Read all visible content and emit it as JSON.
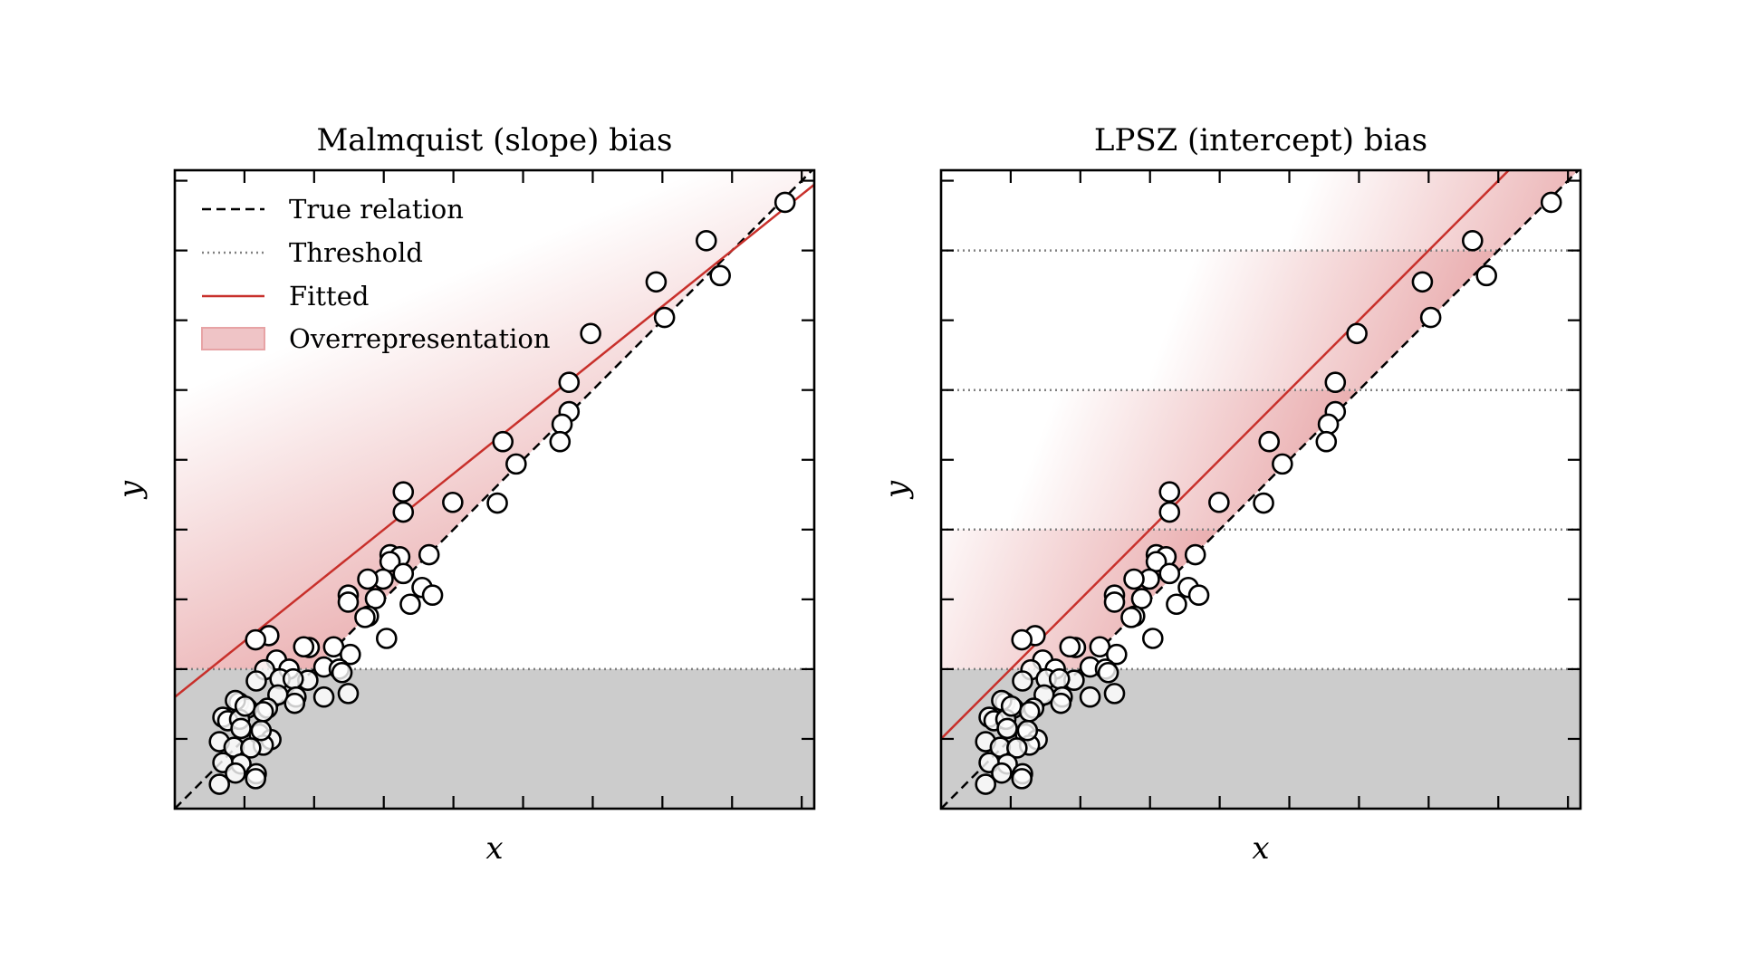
{
  "chart_data": [
    {
      "type": "scatter",
      "title": "Malmquist (slope) bias",
      "xlabel": "x",
      "ylabel": "y",
      "xlim": [
        0,
        9.18
      ],
      "ylim": [
        0,
        9.15
      ],
      "ticks": [
        1,
        2,
        3,
        4,
        5,
        6,
        7,
        8,
        9
      ],
      "tick_labels_shown": false,
      "grid": false,
      "legend_position": "top-left",
      "legend": [
        "True relation",
        "Threshold",
        "Fitted",
        "Overrepresentation"
      ],
      "thresholds": [
        2
      ],
      "true_relation": {
        "intercept": 0,
        "slope": 1
      },
      "fitted": {
        "intercept": 1.6,
        "slope": 0.8
      },
      "shading": "single",
      "colors": {
        "fitted": "#c8302b",
        "shade": "#e7a3a5",
        "below_threshold": "#cccccc",
        "threshold": "#808080"
      }
    },
    {
      "type": "scatter",
      "title": "LPSZ (intercept) bias",
      "xlabel": "x",
      "ylabel": "y",
      "xlim": [
        0,
        9.18
      ],
      "ylim": [
        0,
        9.15
      ],
      "ticks": [
        1,
        2,
        3,
        4,
        5,
        6,
        7,
        8,
        9
      ],
      "tick_labels_shown": false,
      "grid": false,
      "thresholds": [
        2,
        4,
        6,
        8
      ],
      "true_relation": {
        "intercept": 0,
        "slope": 1
      },
      "fitted": {
        "intercept": 1.0,
        "slope": 1.0
      },
      "shading": "banded",
      "colors": {
        "fitted": "#c8302b",
        "shade": "#e7a3a5",
        "below_threshold": "#cccccc",
        "threshold": "#808080"
      }
    }
  ],
  "points": [
    [
      8.76,
      8.69
    ],
    [
      7.63,
      8.14
    ],
    [
      7.83,
      7.64
    ],
    [
      6.91,
      7.55
    ],
    [
      7.03,
      7.04
    ],
    [
      5.97,
      6.81
    ],
    [
      5.66,
      6.11
    ],
    [
      5.66,
      5.69
    ],
    [
      5.56,
      5.51
    ],
    [
      5.53,
      5.26
    ],
    [
      4.71,
      5.26
    ],
    [
      4.9,
      4.94
    ],
    [
      4.63,
      4.38
    ],
    [
      3.99,
      4.39
    ],
    [
      3.28,
      4.54
    ],
    [
      3.28,
      4.25
    ],
    [
      3.65,
      3.64
    ],
    [
      3.09,
      3.64
    ],
    [
      3.23,
      3.61
    ],
    [
      3.09,
      3.54
    ],
    [
      3.28,
      3.37
    ],
    [
      2.99,
      3.29
    ],
    [
      2.77,
      3.29
    ],
    [
      3.55,
      3.17
    ],
    [
      3.7,
      3.06
    ],
    [
      2.49,
      3.06
    ],
    [
      2.49,
      2.96
    ],
    [
      2.88,
      3.01
    ],
    [
      3.38,
      2.93
    ],
    [
      2.78,
      2.76
    ],
    [
      2.73,
      2.74
    ],
    [
      3.04,
      2.44
    ],
    [
      1.35,
      2.48
    ],
    [
      1.16,
      2.42
    ],
    [
      1.93,
      2.31
    ],
    [
      1.85,
      2.32
    ],
    [
      2.28,
      2.32
    ],
    [
      2.52,
      2.21
    ],
    [
      1.46,
      2.13
    ],
    [
      1.64,
      2.0
    ],
    [
      1.29,
      1.99
    ],
    [
      2.14,
      2.03
    ],
    [
      2.36,
      2.0
    ],
    [
      2.4,
      1.95
    ],
    [
      1.91,
      1.84
    ],
    [
      1.17,
      1.83
    ],
    [
      1.51,
      1.86
    ],
    [
      1.7,
      1.86
    ],
    [
      2.49,
      1.65
    ],
    [
      2.14,
      1.6
    ],
    [
      1.74,
      1.6
    ],
    [
      1.48,
      1.63
    ],
    [
      0.92,
      1.52
    ],
    [
      1.72,
      1.51
    ],
    [
      1.33,
      1.44
    ],
    [
      1.04,
      1.44
    ],
    [
      1.27,
      1.39
    ],
    [
      0.87,
      1.55
    ],
    [
      0.69,
      1.31
    ],
    [
      0.76,
      1.26
    ],
    [
      0.93,
      1.28
    ],
    [
      1.21,
      1.07
    ],
    [
      1.38,
      0.99
    ],
    [
      0.64,
      0.96
    ],
    [
      1.27,
      0.91
    ],
    [
      0.85,
      0.88
    ],
    [
      1.09,
      0.87
    ],
    [
      0.95,
      0.64
    ],
    [
      0.69,
      0.66
    ],
    [
      1.17,
      0.5
    ],
    [
      0.87,
      0.51
    ],
    [
      1.16,
      0.43
    ],
    [
      0.64,
      0.35
    ],
    [
      0.95,
      1.15
    ],
    [
      1.01,
      1.47
    ],
    [
      1.24,
      1.12
    ]
  ]
}
